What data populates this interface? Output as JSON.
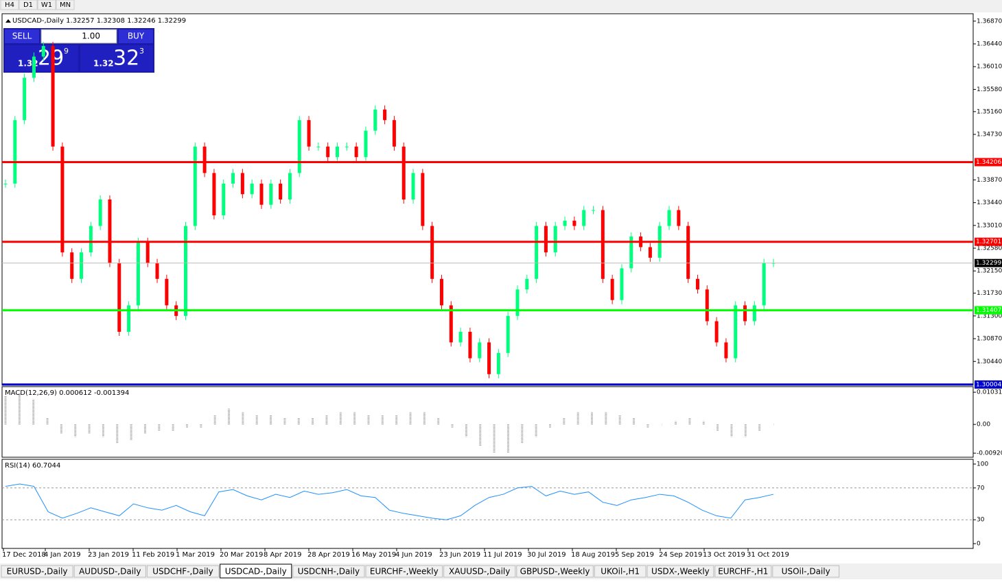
{
  "toolbar": {
    "timeframes": [
      "H4",
      "D1",
      "W1",
      "MN"
    ]
  },
  "trade_panel": {
    "sell": "SELL",
    "lot": "1.00",
    "buy": "BUY",
    "bid": {
      "prefix": "1.32",
      "big": "29",
      "small": "9"
    },
    "ask": {
      "prefix": "1.32",
      "big": "32",
      "small": "3"
    }
  },
  "chart_data": [
    {
      "type": "candlestick",
      "title": "USDCAD-,Daily 1.32257 1.32308 1.32246 1.32299",
      "up_color": "#00ff7f",
      "down_color": "#ff0000",
      "closes": [
        1.338,
        1.35,
        1.358,
        1.362,
        1.364,
        1.345,
        1.325,
        1.32,
        1.325,
        1.33,
        1.335,
        1.323,
        1.31,
        1.315,
        1.327,
        1.323,
        1.32,
        1.315,
        1.313,
        1.33,
        1.345,
        1.34,
        1.332,
        1.338,
        1.34,
        1.336,
        1.338,
        1.334,
        1.338,
        1.335,
        1.34,
        1.35,
        1.345,
        1.345,
        1.343,
        1.345,
        1.345,
        1.343,
        1.348,
        1.352,
        1.35,
        1.345,
        1.335,
        1.34,
        1.33,
        1.32,
        1.315,
        1.308,
        1.31,
        1.305,
        1.308,
        1.302,
        1.306,
        1.313,
        1.318,
        1.32,
        1.33,
        1.325,
        1.33,
        1.331,
        1.33,
        1.333,
        1.333,
        1.32,
        1.316,
        1.322,
        1.328,
        1.326,
        1.324,
        1.33,
        1.333,
        1.33,
        1.32,
        1.318,
        1.312,
        1.308,
        1.305,
        1.315,
        1.312,
        1.315,
        1.323,
        1.323
      ],
      "ylim": [
        1.2999,
        1.3701
      ],
      "yticks": [
        {
          "value": 1.3687,
          "label": "1.36870"
        },
        {
          "value": 1.3644,
          "label": "1.36440"
        },
        {
          "value": 1.3601,
          "label": "1.36010"
        },
        {
          "value": 1.3558,
          "label": "1.35580"
        },
        {
          "value": 1.3516,
          "label": "1.35160"
        },
        {
          "value": 1.3473,
          "label": "1.34730"
        },
        {
          "value": 1.3387,
          "label": "1.33870"
        },
        {
          "value": 1.3344,
          "label": "1.33440"
        },
        {
          "value": 1.3301,
          "label": "1.33010"
        },
        {
          "value": 1.3258,
          "label": "1.32580"
        },
        {
          "value": 1.3215,
          "label": "1.32150"
        },
        {
          "value": 1.3173,
          "label": "1.31730"
        },
        {
          "value": 1.313,
          "label": "1.31300"
        },
        {
          "value": 1.3087,
          "label": "1.30870"
        },
        {
          "value": 1.3044,
          "label": "1.30440"
        }
      ],
      "levels": [
        {
          "value": 1.34206,
          "color": "#ff0000"
        },
        {
          "value": 1.32701,
          "color": "#ff0000"
        },
        {
          "value": 1.31407,
          "color": "#00ff00"
        },
        {
          "value": 1.30004,
          "color": "#0000cd"
        },
        {
          "value": 1.32299,
          "color": "#000000"
        }
      ],
      "x_labels": [
        "17 Dec 2018",
        "4 Jan 2019",
        "23 Jan 2019",
        "11 Feb 2019",
        "1 Mar 2019",
        "20 Mar 2019",
        "8 Apr 2019",
        "28 Apr 2019",
        "16 May 2019",
        "4 Jun 2019",
        "23 Jun 2019",
        "11 Jul 2019",
        "30 Jul 2019",
        "18 Aug 2019",
        "5 Sep 2019",
        "24 Sep 2019",
        "13 Oct 2019",
        "31 Oct 2019"
      ]
    },
    {
      "type": "histogram",
      "title": "MACD(12,26,9) 0.000612 -0.001394",
      "color": "#a0a0a0",
      "values": [
        0.009,
        0.01,
        0.008,
        0.002,
        -0.003,
        -0.004,
        -0.003,
        -0.004,
        -0.006,
        -0.005,
        -0.003,
        -0.002,
        -0.002,
        -0.001,
        -0.001,
        0.003,
        0.005,
        0.004,
        0.003,
        0.003,
        0.002,
        0.002,
        0.002,
        0.003,
        0.004,
        0.004,
        0.003,
        0.003,
        0.003,
        0.004,
        0.004,
        0.002,
        -0.001,
        -0.004,
        -0.007,
        -0.009,
        -0.009,
        -0.006,
        -0.004,
        -0.001,
        0.002,
        0.004,
        0.004,
        0.004,
        0.003,
        0.002,
        -0.001,
        0,
        0.001,
        0.002,
        0.001,
        -0.002,
        -0.004,
        -0.004,
        -0.002,
        0
      ],
      "ylim": [
        -0.0105,
        0.0121
      ],
      "yticks": [
        0.010311,
        {
          "value": 0,
          "label": "0.00"
        },
        -0.009203
      ]
    },
    {
      "type": "line",
      "title": "RSI(14) 60.7044",
      "color": "#1e90ff",
      "values": [
        72,
        75,
        72,
        40,
        32,
        38,
        45,
        40,
        35,
        50,
        45,
        42,
        48,
        40,
        35,
        65,
        68,
        60,
        55,
        62,
        58,
        66,
        62,
        64,
        68,
        60,
        58,
        42,
        38,
        35,
        32,
        30,
        35,
        48,
        58,
        62,
        70,
        72,
        60,
        66,
        62,
        65,
        52,
        48,
        55,
        58,
        62,
        60,
        52,
        42,
        35,
        32,
        55,
        58,
        62
      ],
      "ylim": [
        -6,
        106
      ],
      "yticks": [
        100,
        70,
        30,
        0
      ],
      "levels": [
        70,
        30
      ]
    }
  ],
  "tabs": [
    "EURUSD-,Daily",
    "AUDUSD-,Daily",
    "USDCHF-,Daily",
    "USDCAD-,Daily",
    "USDCNH-,Daily",
    "EURCHF-,Weekly",
    "XAUUSD-,Daily",
    "GBPUSD-,Weekly",
    "UKOil-,H1",
    "USDX-,Weekly",
    "EURCHF-,H1",
    "USOil-,Daily"
  ],
  "active_tab": 3
}
